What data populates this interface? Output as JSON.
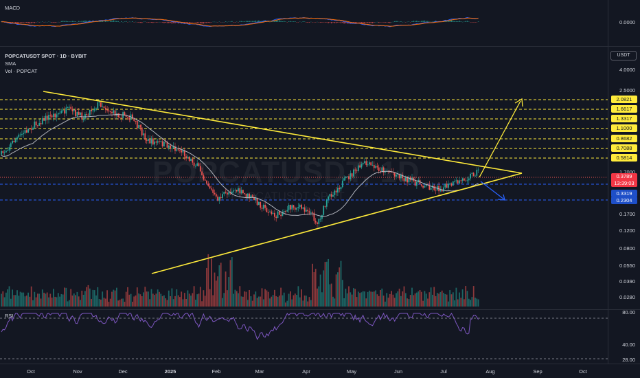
{
  "macd": {
    "label": "MACD",
    "value": "0.0000"
  },
  "header": {
    "symbol": "POPCATUSDT SPOT · 1D · BYBIT",
    "sma": "SMA",
    "vol": "Vol · POPCAT",
    "currency": "USDT"
  },
  "watermark": {
    "symbol": "POPCATUSDT, 1D",
    "sub": "POPCATUSDT SPOT"
  },
  "price_axis": [
    "4.0000",
    "2.5000",
    "1.7000",
    "0.1700",
    "0.1200",
    "0.0800",
    "0.0550",
    "0.0390",
    "0.0280"
  ],
  "levels": [
    "2.0821",
    "1.6617",
    "1.3317",
    "1.1000",
    "0.8682",
    "0.7088",
    "0.5814"
  ],
  "current": {
    "price": "0.3789",
    "countdown": "13:39:03"
  },
  "blue_levels": [
    "0.3319",
    "0.2304"
  ],
  "rsi": {
    "label": "RSI",
    "axis": [
      "80.00",
      "40.00",
      "28.00"
    ]
  },
  "time_axis": [
    "Oct",
    "Nov",
    "Dec",
    "2025",
    "Feb",
    "Mar",
    "Apr",
    "May",
    "Jun",
    "Jul",
    "Aug",
    "Sep",
    "Oct"
  ],
  "colors": {
    "up": "#26a69a",
    "down": "#ef5350",
    "trend": "#ffeb3b",
    "level": "#ffeb3b",
    "blue": "#2962ff",
    "sma": "#b2b5be",
    "rsi": "#7e57c2"
  }
}
